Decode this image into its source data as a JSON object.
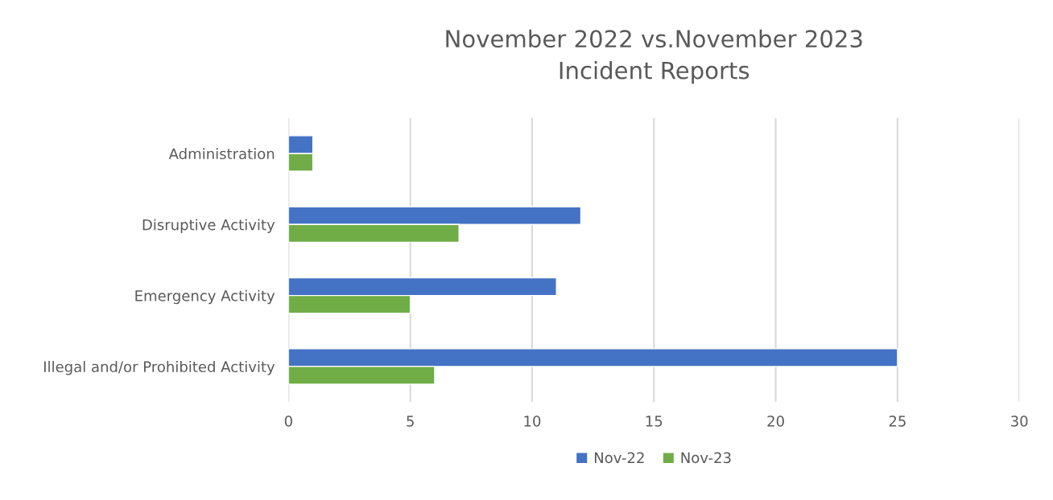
{
  "chart_data": {
    "type": "bar",
    "orientation": "horizontal",
    "title": "November 2022 vs.November 2023\nIncident Reports",
    "categories": [
      "Administration",
      "Disruptive Activity",
      "Emergency Activity",
      "Illegal and/or Prohibited Activity"
    ],
    "series": [
      {
        "name": "Nov-22",
        "color": "#4472c4",
        "values": [
          1,
          12,
          11,
          25
        ]
      },
      {
        "name": "Nov-23",
        "color": "#70ad47",
        "values": [
          1,
          7,
          5,
          6
        ]
      }
    ],
    "xlim": [
      0,
      30
    ],
    "xticks": [
      0,
      5,
      10,
      15,
      20,
      25,
      30
    ],
    "grid": "x",
    "legend": "bottom"
  }
}
